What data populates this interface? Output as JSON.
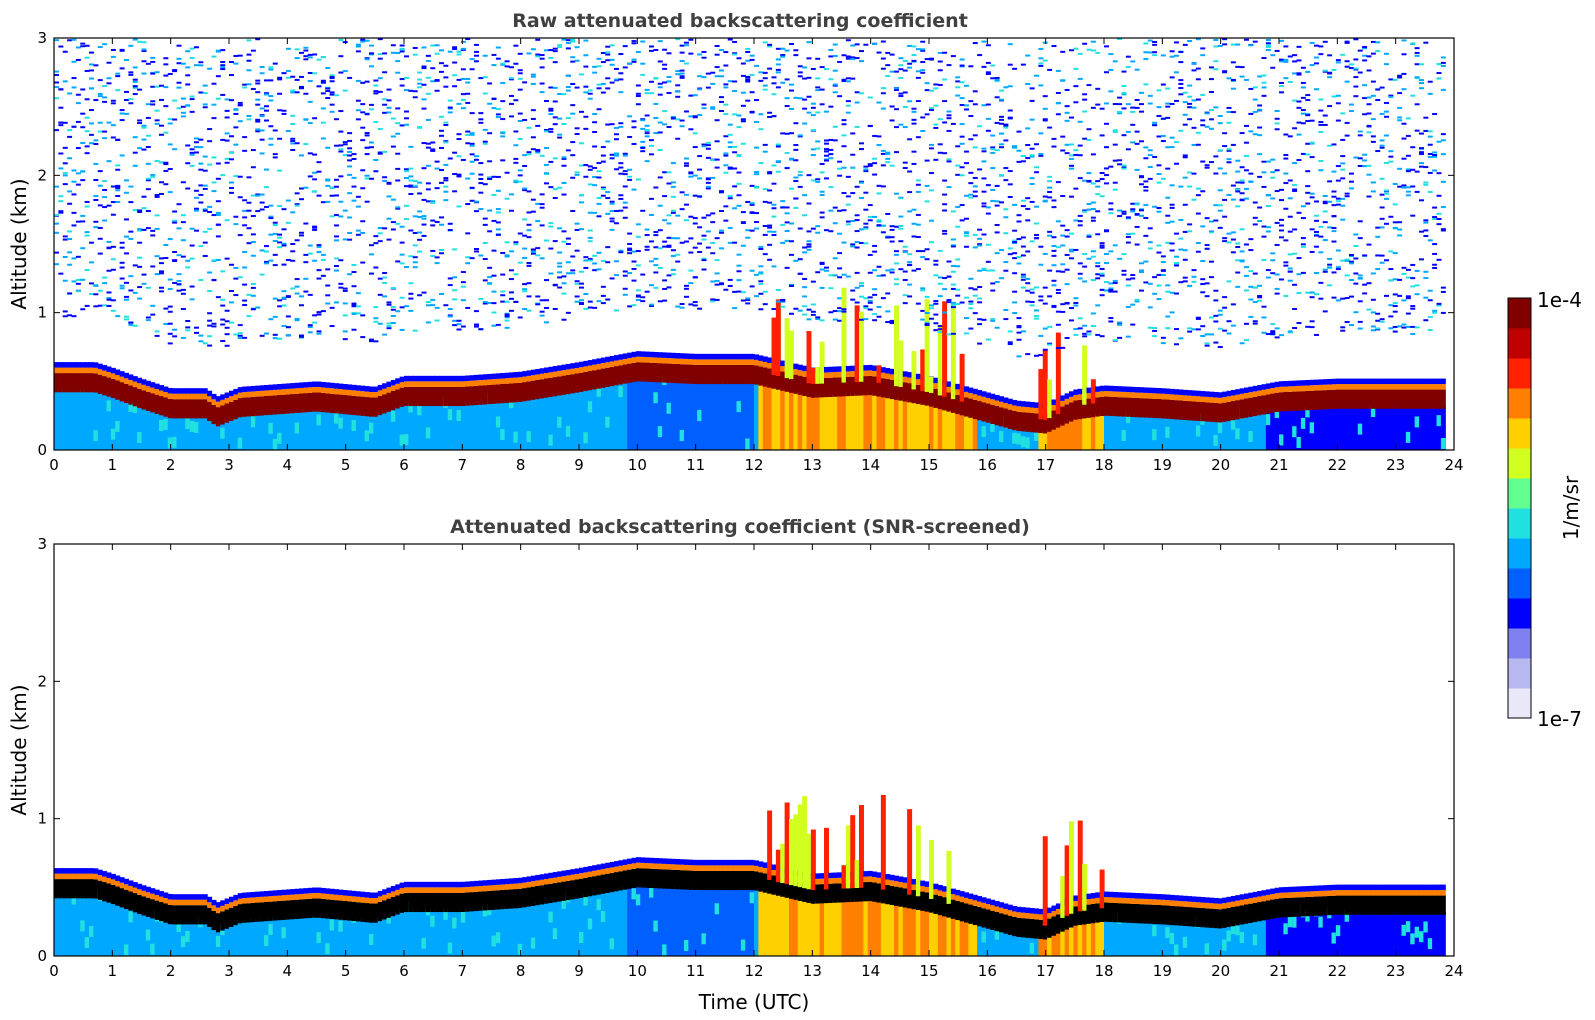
{
  "chart_data": [
    {
      "type": "heatmap",
      "title": "Raw attenuated backscattering coefficient",
      "xlabel": "",
      "ylabel": "Altitude (km)",
      "xlim": [
        0,
        24
      ],
      "ylim": [
        0,
        3
      ],
      "xticks": [
        0,
        1,
        2,
        3,
        4,
        5,
        6,
        7,
        8,
        9,
        10,
        11,
        12,
        13,
        14,
        15,
        16,
        17,
        18,
        19,
        20,
        21,
        22,
        23,
        24
      ],
      "yticks": [
        0,
        1,
        2,
        3
      ],
      "screened": false,
      "layer_top_km": [
        [
          0,
          0.52
        ],
        [
          0.7,
          0.52
        ],
        [
          1.0,
          0.48
        ],
        [
          1.5,
          0.4
        ],
        [
          2.0,
          0.33
        ],
        [
          2.6,
          0.33
        ],
        [
          2.8,
          0.27
        ],
        [
          3.2,
          0.34
        ],
        [
          4.5,
          0.38
        ],
        [
          5.0,
          0.36
        ],
        [
          5.5,
          0.34
        ],
        [
          6.0,
          0.42
        ],
        [
          7.0,
          0.42
        ],
        [
          8.0,
          0.45
        ],
        [
          9.0,
          0.52
        ],
        [
          10.0,
          0.6
        ],
        [
          11.0,
          0.58
        ],
        [
          12.0,
          0.58
        ],
        [
          13.0,
          0.48
        ],
        [
          14.0,
          0.5
        ],
        [
          15.0,
          0.42
        ],
        [
          16.0,
          0.3
        ],
        [
          16.5,
          0.24
        ],
        [
          17.0,
          0.22
        ],
        [
          17.5,
          0.32
        ],
        [
          18.0,
          0.35
        ],
        [
          19.0,
          0.33
        ],
        [
          20.0,
          0.3
        ],
        [
          21.0,
          0.38
        ],
        [
          22.0,
          0.4
        ],
        [
          23.8,
          0.4
        ]
      ],
      "noisy_background": true,
      "data_end_hour": 23.85
    },
    {
      "type": "heatmap",
      "title": "Attenuated backscattering coefficient (SNR-screened)",
      "xlabel": "Time (UTC)",
      "ylabel": "Altitude (km)",
      "xlim": [
        0,
        24
      ],
      "ylim": [
        0,
        3
      ],
      "xticks": [
        0,
        1,
        2,
        3,
        4,
        5,
        6,
        7,
        8,
        9,
        10,
        11,
        12,
        13,
        14,
        15,
        16,
        17,
        18,
        19,
        20,
        21,
        22,
        23,
        24
      ],
      "yticks": [
        0,
        1,
        2,
        3
      ],
      "screened": true,
      "layer_top_km": [
        [
          0,
          0.52
        ],
        [
          0.7,
          0.52
        ],
        [
          1.0,
          0.48
        ],
        [
          1.5,
          0.4
        ],
        [
          2.0,
          0.33
        ],
        [
          2.6,
          0.33
        ],
        [
          2.8,
          0.27
        ],
        [
          3.2,
          0.34
        ],
        [
          4.5,
          0.38
        ],
        [
          5.0,
          0.36
        ],
        [
          5.5,
          0.34
        ],
        [
          6.0,
          0.42
        ],
        [
          7.0,
          0.42
        ],
        [
          8.0,
          0.45
        ],
        [
          9.0,
          0.52
        ],
        [
          10.0,
          0.6
        ],
        [
          11.0,
          0.58
        ],
        [
          12.0,
          0.58
        ],
        [
          13.0,
          0.48
        ],
        [
          14.0,
          0.5
        ],
        [
          15.0,
          0.42
        ],
        [
          16.0,
          0.3
        ],
        [
          16.5,
          0.24
        ],
        [
          17.0,
          0.22
        ],
        [
          17.5,
          0.32
        ],
        [
          18.0,
          0.35
        ],
        [
          19.0,
          0.33
        ],
        [
          20.0,
          0.3
        ],
        [
          21.0,
          0.38
        ],
        [
          22.0,
          0.4
        ],
        [
          23.8,
          0.4
        ]
      ],
      "noisy_background": false,
      "data_end_hour": 23.85
    }
  ],
  "colorbar": {
    "label": "1/m/sr",
    "max_label": "1e-4",
    "min_label": "1e-7",
    "scale": "log",
    "colormap": [
      "#e8e8f8",
      "#b8b8f0",
      "#8080f0",
      "#0000ff",
      "#0060ff",
      "#00a8ff",
      "#20e0e0",
      "#60ff90",
      "#d0ff20",
      "#ffd000",
      "#ff8000",
      "#ff2000",
      "#c00000",
      "#800000"
    ]
  }
}
